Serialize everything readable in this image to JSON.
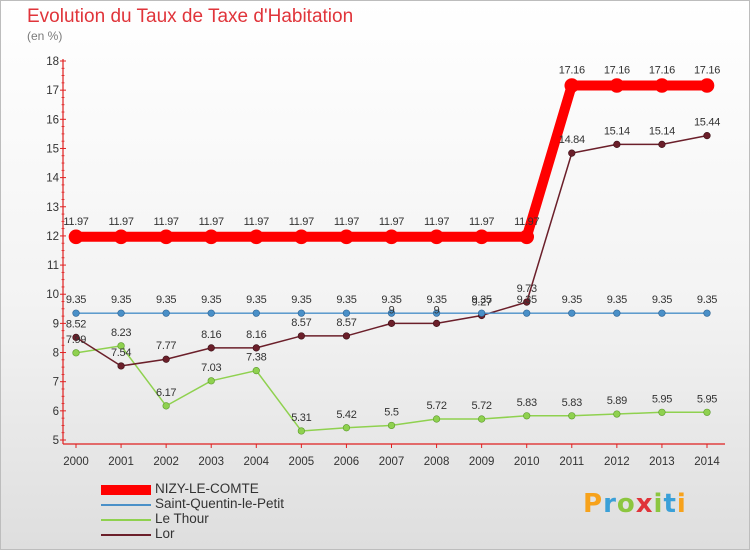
{
  "header": {
    "title": "Evolution du Taux de Taxe d'Habitation",
    "subtitle": "(en %)"
  },
  "logo": {
    "text": "Proxiti"
  },
  "chart_data": {
    "type": "line",
    "title": "Evolution du Taux de Taxe d'Habitation",
    "subtitle": "(en %)",
    "xlabel": "",
    "ylabel": "",
    "x": [
      2000,
      2001,
      2002,
      2003,
      2004,
      2005,
      2006,
      2007,
      2008,
      2009,
      2010,
      2011,
      2012,
      2013,
      2014
    ],
    "x_tick_labels": [
      "2000",
      "2001",
      "2002",
      "2003",
      "2004",
      "2005",
      "2006",
      "2007",
      "2008",
      "2009",
      "2010",
      "2011",
      "2012",
      "2013",
      "2014"
    ],
    "ylim": [
      5,
      18
    ],
    "y_ticks": [
      5,
      6,
      7,
      8,
      9,
      10,
      11,
      12,
      13,
      14,
      15,
      16,
      17,
      18
    ],
    "grid": false,
    "legend_position": "bottom-left",
    "series": [
      {
        "name": "NIZY-LE-COMTE",
        "color": "#ff0000",
        "values": [
          11.97,
          11.97,
          11.97,
          11.97,
          11.97,
          11.97,
          11.97,
          11.97,
          11.97,
          11.97,
          11.97,
          17.16,
          17.16,
          17.16,
          17.16
        ],
        "labels": [
          "11.97",
          "11.97",
          "11.97",
          "11.97",
          "11.97",
          "11.97",
          "11.97",
          "11.97",
          "11.97",
          "11.97",
          "11.97",
          "17.16",
          "17.16",
          "17.16",
          "17.16"
        ]
      },
      {
        "name": "Saint-Quentin-le-Petit",
        "color": "#4a90c8",
        "values": [
          9.35,
          9.35,
          9.35,
          9.35,
          9.35,
          9.35,
          9.35,
          9.35,
          9.35,
          9.35,
          9.35,
          9.35,
          9.35,
          9.35,
          9.35
        ],
        "labels": [
          "9.35",
          "9.35",
          "9.35",
          "9.35",
          "9.35",
          "9.35",
          "9.35",
          "9.35",
          "9.35",
          "9.35",
          "9.35",
          "9.35",
          "9.35",
          "9.35",
          "9.35"
        ]
      },
      {
        "name": "Le Thour",
        "color": "#8fd14f",
        "values": [
          7.99,
          8.23,
          6.17,
          7.03,
          7.38,
          5.31,
          5.42,
          5.5,
          5.72,
          5.72,
          5.83,
          5.83,
          5.89,
          5.95,
          5.95
        ],
        "labels": [
          "7.99",
          "8.23",
          "6.17",
          "7.03",
          "7.38",
          "5.31",
          "5.42",
          "5.5",
          "5.72",
          "5.72",
          "5.83",
          "5.83",
          "5.89",
          "5.95",
          "5.95"
        ]
      },
      {
        "name": "Lor",
        "color": "#6b1f2a",
        "values": [
          8.52,
          7.54,
          7.77,
          8.16,
          8.16,
          8.57,
          8.57,
          9,
          9,
          9.27,
          9.73,
          14.84,
          15.14,
          15.14,
          15.44
        ],
        "labels": [
          "8.52",
          "7.54",
          "7.77",
          "8.16",
          "8.16",
          "8.57",
          "8.57",
          "9",
          "9",
          "9.27",
          "9.73",
          "14.84",
          "15.14",
          "15.14",
          "15.44"
        ]
      }
    ]
  }
}
